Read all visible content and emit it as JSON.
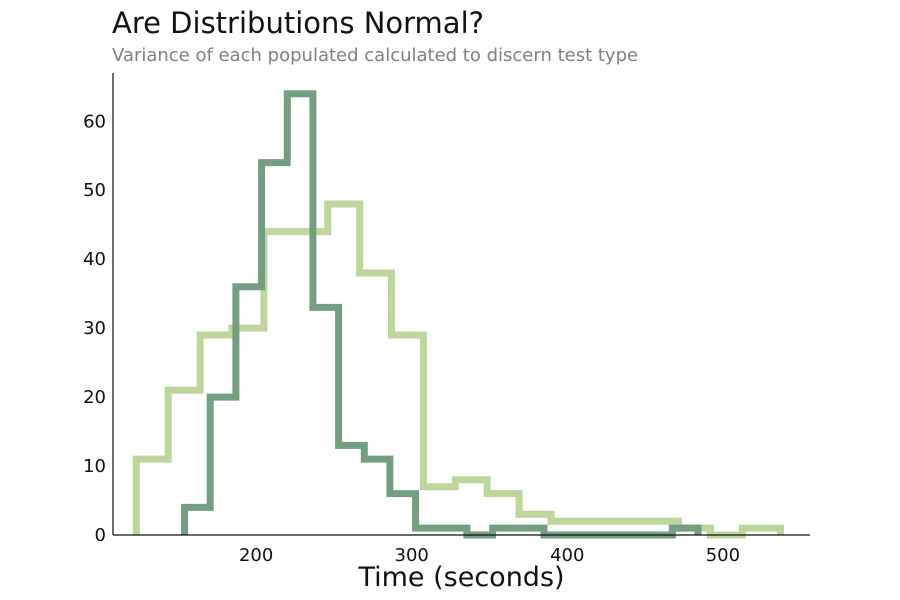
{
  "chart_data": {
    "type": "histogram-step",
    "title": "Are Distributions Normal?",
    "subtitle": "Variance of each populated calculated to discern test type",
    "xlabel": "Time (seconds)",
    "ylabel": "",
    "xlim": [
      108,
      556
    ],
    "ylim": [
      0,
      67
    ],
    "x_ticks": [
      200,
      300,
      400,
      500
    ],
    "y_ticks": [
      0,
      10,
      20,
      30,
      40,
      50,
      60
    ],
    "grid": false,
    "legend": "none",
    "series": [
      {
        "color": "#bcd69c",
        "bin_edges": [
          123,
          143.5,
          164,
          184.5,
          205,
          225.5,
          246,
          266.5,
          287,
          307.5,
          328,
          348.5,
          369,
          389.5,
          410,
          430.5,
          451,
          471.5,
          492,
          512.5,
          537
        ],
        "counts": [
          11,
          21,
          29,
          30,
          44,
          44,
          48,
          38,
          29,
          7,
          8,
          6,
          3,
          2,
          2,
          2,
          2,
          1,
          0,
          1
        ]
      },
      {
        "color": "#739e82",
        "bin_edges": [
          154,
          170.5,
          187,
          203.5,
          220,
          236.5,
          253,
          269.5,
          286,
          302.5,
          319,
          335.5,
          352,
          368.5,
          385,
          401.5,
          418,
          434.5,
          451,
          467.5,
          484
        ],
        "counts": [
          4,
          20,
          36,
          54,
          64,
          33,
          13,
          11,
          6,
          1,
          1,
          0,
          1,
          1,
          0,
          0,
          0,
          0,
          0,
          1
        ]
      }
    ]
  }
}
